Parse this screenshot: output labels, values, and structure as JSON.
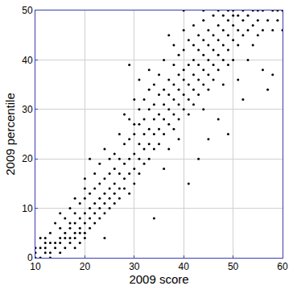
{
  "chart_data": {
    "type": "scatter",
    "xlabel": "2009 score",
    "ylabel": "2009 percentile",
    "color": "#000000",
    "marker": "circle",
    "grid": true,
    "xlim": [
      10,
      60
    ],
    "xticks": [
      10,
      20,
      30,
      40,
      50,
      60
    ],
    "ylim": [
      0,
      50
    ],
    "yticks": [
      0,
      10,
      20,
      30,
      40,
      50
    ],
    "x": [
      10,
      10,
      10,
      11,
      11,
      11,
      12,
      12,
      12,
      12,
      13,
      13,
      13,
      13,
      14,
      14,
      14,
      15,
      15,
      15,
      15,
      15,
      16,
      16,
      16,
      16,
      17,
      17,
      17,
      17,
      17,
      18,
      18,
      18,
      18,
      18,
      18,
      19,
      19,
      19,
      19,
      19,
      20,
      20,
      20,
      20,
      20,
      20,
      20,
      21,
      21,
      21,
      21,
      21,
      22,
      22,
      22,
      22,
      22,
      23,
      23,
      23,
      23,
      23,
      24,
      24,
      24,
      24,
      24,
      24,
      25,
      25,
      25,
      25,
      25,
      26,
      26,
      26,
      26,
      26,
      27,
      27,
      27,
      27,
      27,
      28,
      28,
      28,
      28,
      28,
      29,
      29,
      29,
      29,
      29,
      29,
      30,
      30,
      30,
      30,
      30,
      30,
      31,
      31,
      31,
      31,
      31,
      31,
      32,
      32,
      32,
      32,
      32,
      33,
      33,
      33,
      33,
      33,
      33,
      34,
      34,
      34,
      34,
      34,
      34,
      35,
      35,
      35,
      35,
      35,
      36,
      36,
      36,
      36,
      36,
      36,
      37,
      37,
      37,
      37,
      37,
      37,
      38,
      38,
      38,
      38,
      38,
      38,
      39,
      39,
      39,
      39,
      39,
      39,
      40,
      40,
      40,
      40,
      40,
      40,
      40,
      41,
      41,
      41,
      41,
      41,
      41,
      42,
      42,
      42,
      42,
      42,
      42,
      43,
      43,
      43,
      43,
      43,
      43,
      44,
      44,
      44,
      44,
      44,
      44,
      44,
      45,
      45,
      45,
      45,
      45,
      45,
      46,
      46,
      46,
      46,
      46,
      47,
      47,
      47,
      47,
      47,
      47,
      48,
      48,
      48,
      48,
      48,
      49,
      49,
      49,
      49,
      49,
      49,
      50,
      50,
      50,
      50,
      50,
      51,
      51,
      51,
      51,
      52,
      52,
      52,
      52,
      53,
      53,
      53,
      54,
      54,
      54,
      55,
      55,
      55,
      56,
      56,
      56,
      57,
      57,
      58,
      58,
      58,
      59,
      59,
      60,
      60
    ],
    "values": [
      0,
      1,
      2,
      0,
      2,
      4,
      1,
      2,
      3,
      4,
      0,
      1,
      3,
      5,
      2,
      3,
      7,
      1,
      3,
      4,
      6,
      9,
      2,
      4,
      5,
      8,
      3,
      4,
      6,
      7,
      10,
      2,
      4,
      5,
      7,
      9,
      12,
      3,
      5,
      6,
      8,
      11,
      4,
      5,
      7,
      9,
      12,
      14,
      16,
      6,
      8,
      10,
      13,
      20,
      7,
      9,
      11,
      14,
      17,
      8,
      10,
      12,
      15,
      19,
      4,
      9,
      11,
      13,
      16,
      22,
      10,
      12,
      14,
      17,
      20,
      11,
      13,
      15,
      18,
      21,
      12,
      14,
      17,
      20,
      25,
      14,
      16,
      19,
      23,
      29,
      13,
      17,
      20,
      24,
      28,
      39,
      15,
      18,
      21,
      25,
      27,
      32,
      17,
      20,
      23,
      27,
      30,
      36,
      19,
      22,
      25,
      28,
      32,
      20,
      23,
      26,
      30,
      34,
      38,
      8,
      22,
      25,
      28,
      31,
      35,
      23,
      26,
      29,
      33,
      37,
      18,
      25,
      28,
      31,
      34,
      40,
      22,
      27,
      30,
      33,
      36,
      45,
      26,
      29,
      32,
      35,
      39,
      43,
      24,
      28,
      31,
      34,
      37,
      41,
      30,
      33,
      36,
      38,
      42,
      46,
      50,
      15,
      29,
      32,
      35,
      39,
      44,
      31,
      34,
      37,
      40,
      43,
      47,
      20,
      33,
      36,
      39,
      42,
      45,
      30,
      35,
      38,
      41,
      44,
      48,
      50,
      24,
      34,
      37,
      40,
      43,
      46,
      36,
      39,
      42,
      45,
      49,
      28,
      38,
      41,
      44,
      47,
      50,
      35,
      40,
      43,
      46,
      49,
      25,
      39,
      42,
      45,
      48,
      50,
      40,
      44,
      47,
      49,
      50,
      36,
      43,
      46,
      49,
      32,
      45,
      48,
      50,
      40,
      46,
      49,
      43,
      47,
      50,
      45,
      48,
      50,
      38,
      46,
      50,
      34,
      48,
      37,
      46,
      50,
      48,
      50,
      46,
      50
    ]
  }
}
